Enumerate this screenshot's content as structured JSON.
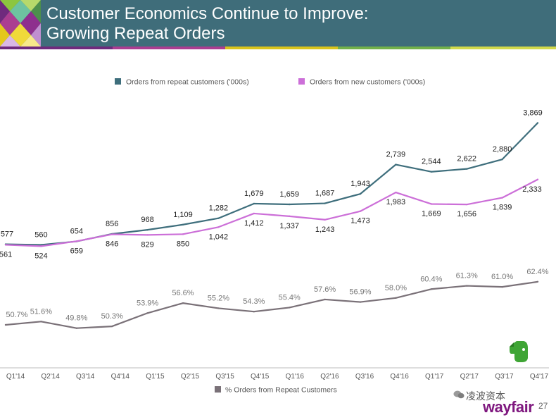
{
  "header": {
    "title_line1": "Customer Economics Continue to Improve:",
    "title_line2": "Growing Repeat Orders",
    "background_color": "#3f6d7a",
    "stripe_colors": [
      "#6f2a7d",
      "#ab3d91",
      "#d9c41b",
      "#73b14a",
      "#d2d94b"
    ]
  },
  "footer": {
    "watermark_text": "凌波资本",
    "brand_text": "wayfair",
    "page_number": "27",
    "icons": [
      "wechat-icon",
      "evernote-icon"
    ]
  },
  "chart_data": [
    {
      "type": "line",
      "categories": [
        "Q1'14",
        "Q2'14",
        "Q3'14",
        "Q4'14",
        "Q1'15",
        "Q2'15",
        "Q3'15",
        "Q4'15",
        "Q1'16",
        "Q2'16",
        "Q3'16",
        "Q4'16",
        "Q1'17",
        "Q2'17",
        "Q3'17",
        "Q4'17"
      ],
      "legend_position": "top",
      "grid": false,
      "series": [
        {
          "name": "Orders from repeat customers ('000s)",
          "color": "#3e6e7c",
          "values": [
            577,
            560,
            654,
            856,
            968,
            1109,
            1282,
            1679,
            1659,
            1687,
            1943,
            2739,
            2544,
            2622,
            2880,
            3869
          ],
          "labels": [
            "577",
            "560",
            "654",
            "856",
            "968",
            "1,109",
            "1,282",
            "1,679",
            "1,659",
            "1,687",
            "1,943",
            "2,739",
            "2,544",
            "2,622",
            "2,880",
            "3,869"
          ]
        },
        {
          "name": "Orders from new customers ('000s)",
          "color": "#cc6fd8",
          "values": [
            561,
            524,
            659,
            846,
            829,
            850,
            1042,
            1412,
            1337,
            1243,
            1473,
            1983,
            1669,
            1656,
            1839,
            2333
          ],
          "labels": [
            "561",
            "524",
            "659",
            "846",
            "829",
            "850",
            "1,042",
            "1,412",
            "1,337",
            "1,243",
            "1,473",
            "1,983",
            "1,669",
            "1,656",
            "1,839",
            "2,333"
          ]
        }
      ]
    },
    {
      "type": "line",
      "categories": [
        "Q1'14",
        "Q2'14",
        "Q3'14",
        "Q4'14",
        "Q1'15",
        "Q2'15",
        "Q3'15",
        "Q4'15",
        "Q1'16",
        "Q2'16",
        "Q3'16",
        "Q4'16",
        "Q1'17",
        "Q2'17",
        "Q3'17",
        "Q4'17"
      ],
      "legend_position": "bottom",
      "grid": false,
      "series": [
        {
          "name": "% Orders from Repeat Customers",
          "color": "#7a7178",
          "values": [
            50.7,
            51.6,
            49.8,
            50.3,
            53.9,
            56.6,
            55.2,
            54.3,
            55.4,
            57.6,
            56.9,
            58.0,
            60.4,
            61.3,
            61.0,
            62.4
          ],
          "labels": [
            "50.7%",
            "51.6%",
            "49.8%",
            "50.3%",
            "53.9%",
            "56.6%",
            "55.2%",
            "54.3%",
            "55.4%",
            "57.6%",
            "56.9%",
            "58.0%",
            "60.4%",
            "61.3%",
            "61.0%",
            "62.4%"
          ]
        }
      ]
    }
  ]
}
